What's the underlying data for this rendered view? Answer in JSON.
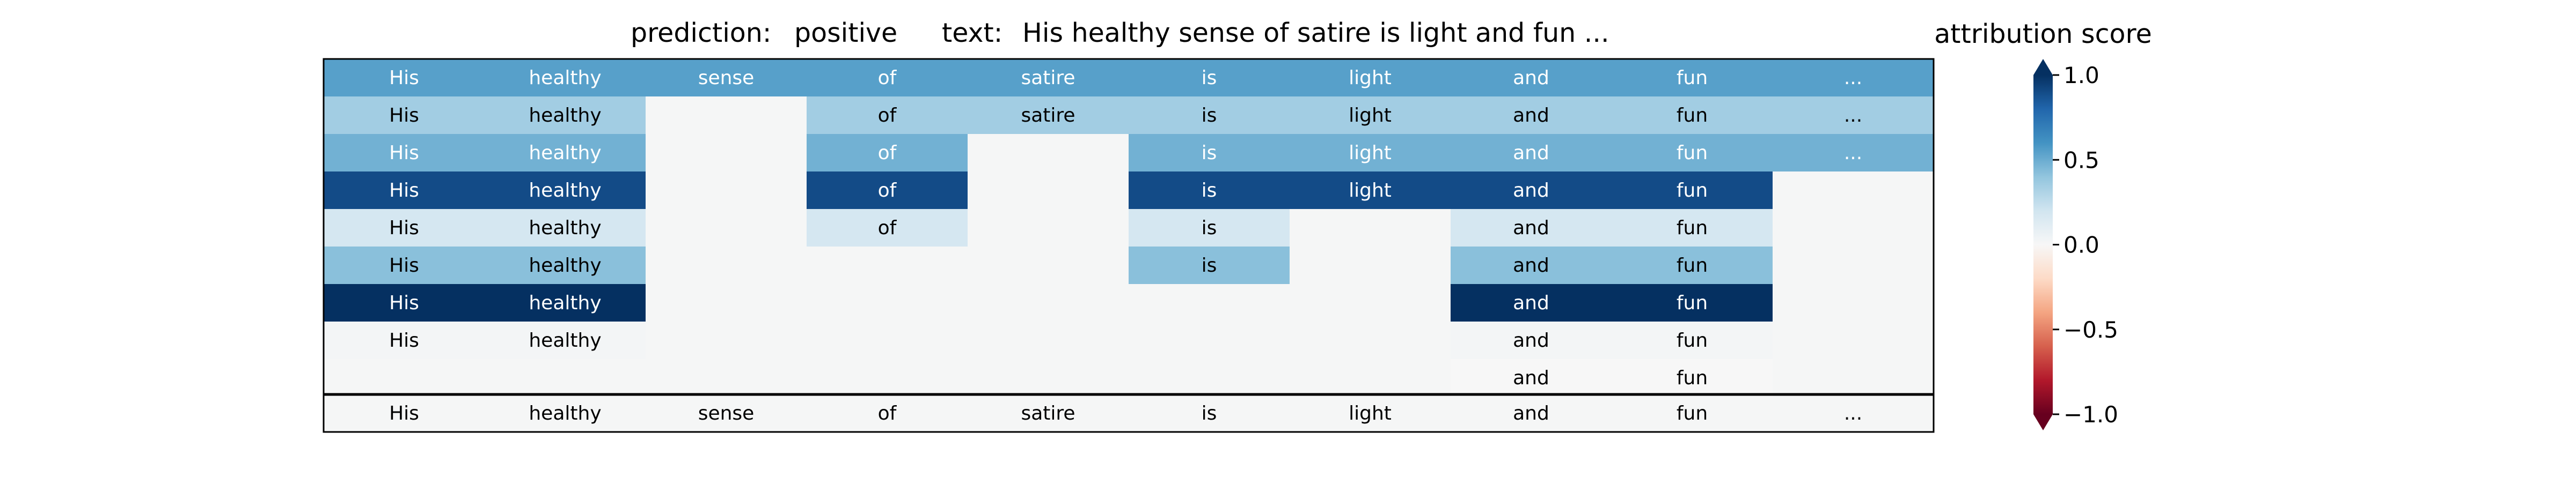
{
  "header": {
    "prediction_label": "prediction:",
    "prediction_value": "positive",
    "text_label": "text:",
    "text_value": "His healthy sense of satire is light and fun ..."
  },
  "colorbar": {
    "title": "attribution score",
    "ticks": [
      "1.0",
      "0.5",
      "0.0",
      "−0.5",
      "−1.0"
    ],
    "tick_values": [
      1.0,
      0.5,
      0.0,
      -0.5,
      -1.0
    ],
    "range": [
      -1.0,
      1.0
    ],
    "extend": "both",
    "colormap": "RdBu"
  },
  "chart_data": {
    "type": "heatmap",
    "columns": [
      "His",
      "healthy",
      "sense",
      "of",
      "satire",
      "is",
      "light",
      "and",
      "fun",
      "..."
    ],
    "rows": [
      [
        0.55,
        0.55,
        0.55,
        0.55,
        0.55,
        0.55,
        0.55,
        0.55,
        0.55,
        0.55
      ],
      [
        0.35,
        0.35,
        null,
        0.35,
        0.35,
        0.35,
        0.35,
        0.35,
        0.35,
        0.35
      ],
      [
        0.48,
        0.48,
        null,
        0.48,
        null,
        0.48,
        0.48,
        0.48,
        0.48,
        0.48
      ],
      [
        0.9,
        0.9,
        null,
        0.9,
        null,
        0.9,
        0.9,
        0.9,
        0.9,
        null
      ],
      [
        0.18,
        0.18,
        null,
        0.18,
        null,
        0.18,
        null,
        0.18,
        0.18,
        null
      ],
      [
        0.42,
        0.42,
        null,
        null,
        null,
        0.42,
        null,
        0.42,
        0.42,
        null
      ],
      [
        1.0,
        1.0,
        null,
        null,
        null,
        null,
        null,
        1.0,
        1.0,
        null
      ],
      [
        0.02,
        0.02,
        null,
        null,
        null,
        null,
        null,
        0.02,
        0.02,
        null
      ],
      [
        null,
        null,
        null,
        null,
        null,
        null,
        null,
        0.0,
        0.0,
        null
      ]
    ],
    "bottom_row": [
      "His",
      "healthy",
      "sense",
      "of",
      "satire",
      "is",
      "light",
      "and",
      "fun",
      "..."
    ],
    "background_color": "#f5f6f6",
    "text_color_light": "#ffffff",
    "text_color_dark": "#000000"
  }
}
